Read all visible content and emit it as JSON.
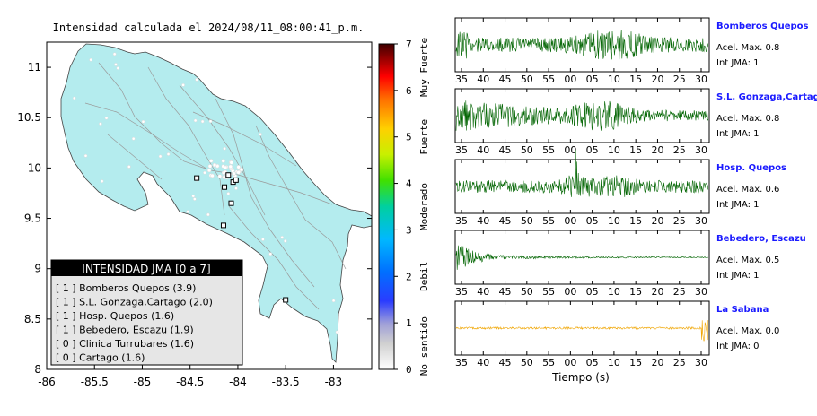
{
  "map": {
    "title": "Intensidad calculada el 2024/08/11_08:00:41_p.m.",
    "xlim": [
      -86,
      -82.6
    ],
    "ylim": [
      8,
      11.25
    ],
    "x_ticks": [
      "-86",
      "-85.5",
      "-85",
      "-84.5",
      "-84",
      "-83.5",
      "-83"
    ],
    "y_ticks": [
      "11",
      "10.5",
      "10",
      "9.5",
      "9",
      "8.5",
      "8"
    ],
    "land_color": "#b4ecee",
    "stations": [
      {
        "lon": -84.43,
        "lat": 9.9
      },
      {
        "lon": -84.1,
        "lat": 9.93
      },
      {
        "lon": -84.05,
        "lat": 9.86
      },
      {
        "lon": -84.02,
        "lat": 9.88
      },
      {
        "lon": -84.14,
        "lat": 9.81
      },
      {
        "lon": -84.07,
        "lat": 9.65
      },
      {
        "lon": -84.15,
        "lat": 9.43
      },
      {
        "lon": -83.5,
        "lat": 8.69
      }
    ]
  },
  "legend": {
    "header": "INTENSIDAD JMA [0 a 7]",
    "items": [
      "[ 1 ]  Bomberos Quepos (3.9)",
      "[ 1 ]  S.L. Gonzaga,Cartago (2.0)",
      "[ 1 ]  Hosp. Quepos (1.6)",
      "[ 1 ]  Bebedero, Escazu (1.9)",
      "[ 0 ]  Clinica Turrubares (1.6)",
      "[ 0 ]  Cartago (1.6)"
    ]
  },
  "colorbar": {
    "ticks": [
      "0",
      "1",
      "2",
      "3",
      "4",
      "5",
      "6",
      "7"
    ],
    "categories": [
      "No sentido",
      "Debil",
      "Moderado",
      "Fuerte",
      "Muy Fuerte"
    ]
  },
  "chart_data": {
    "type": "line",
    "xlabel": "Tiempo (s)",
    "traces": [
      {
        "name": "Bomberos Quepos",
        "accel_label": "Acel. Max. 0.8",
        "jma_label": "Int JMA: 1",
        "color": "#006400",
        "name_color": "#1a1aff",
        "x_ticks": [
          "35",
          "40",
          "45",
          "50",
          "55",
          "00",
          "05",
          "10",
          "15",
          "20",
          "25",
          "30"
        ]
      },
      {
        "name": "S.L. Gonzaga,Cartago",
        "accel_label": "Acel. Max. 0.8",
        "jma_label": "Int JMA: 1",
        "color": "#006400",
        "name_color": "#1a1aff",
        "x_ticks": [
          "35",
          "40",
          "45",
          "50",
          "55",
          "00",
          "05",
          "10",
          "15",
          "20",
          "25",
          "30"
        ]
      },
      {
        "name": "Hosp. Quepos",
        "accel_label": "Acel. Max. 0.6",
        "jma_label": "Int JMA: 1",
        "color": "#006400",
        "name_color": "#1a1aff",
        "x_ticks": [
          "35",
          "40",
          "45",
          "50",
          "55",
          "00",
          "05",
          "10",
          "15",
          "20",
          "25",
          "30"
        ]
      },
      {
        "name": "Bebedero, Escazu",
        "accel_label": "Acel. Max. 0.5",
        "jma_label": "Int JMA: 1",
        "color": "#006400",
        "name_color": "#1a1aff",
        "x_ticks": [
          "35",
          "40",
          "45",
          "50",
          "55",
          "00",
          "05",
          "10",
          "15",
          "20",
          "25",
          "30"
        ]
      },
      {
        "name": "La Sabana",
        "accel_label": "Acel. Max. 0.0",
        "jma_label": "Int JMA: 0",
        "color": "#f0a500",
        "name_color": "#1a1aff",
        "x_ticks": [
          "35",
          "40",
          "45",
          "50",
          "55",
          "00",
          "05",
          "10",
          "15",
          "20",
          "25",
          "30"
        ]
      }
    ]
  }
}
